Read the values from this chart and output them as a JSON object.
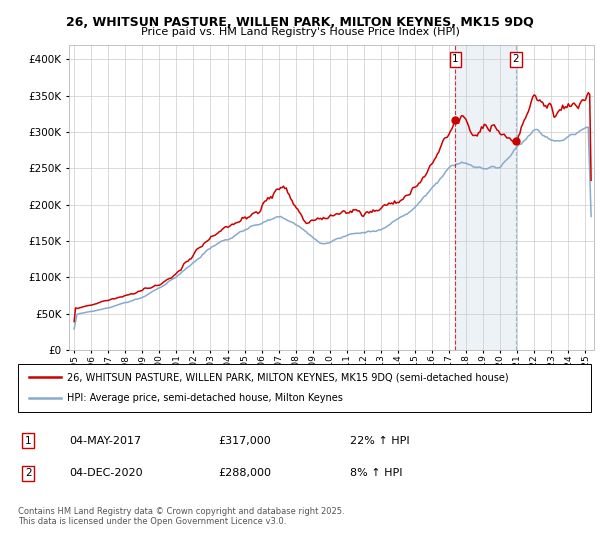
{
  "title_line1": "26, WHITSUN PASTURE, WILLEN PARK, MILTON KEYNES, MK15 9DQ",
  "title_line2": "Price paid vs. HM Land Registry's House Price Index (HPI)",
  "background_color": "#ffffff",
  "grid_color": "#cccccc",
  "red_color": "#cc0000",
  "blue_color": "#88aacc",
  "blue_fill": "#ddeeff",
  "marker1_x": 2017.37,
  "marker2_x": 2020.92,
  "marker1_y": 317000,
  "marker2_y": 288000,
  "legend_line1": "26, WHITSUN PASTURE, WILLEN PARK, MILTON KEYNES, MK15 9DQ (semi-detached house)",
  "legend_line2": "HPI: Average price, semi-detached house, Milton Keynes",
  "note1_date": "04-MAY-2017",
  "note1_price": "£317,000",
  "note1_hpi": "22% ↑ HPI",
  "note2_date": "04-DEC-2020",
  "note2_price": "£288,000",
  "note2_hpi": "8% ↑ HPI",
  "footer": "Contains HM Land Registry data © Crown copyright and database right 2025.\nThis data is licensed under the Open Government Licence v3.0.",
  "ylim": [
    0,
    420000
  ],
  "xlim_start": 1994.7,
  "xlim_end": 2025.5
}
